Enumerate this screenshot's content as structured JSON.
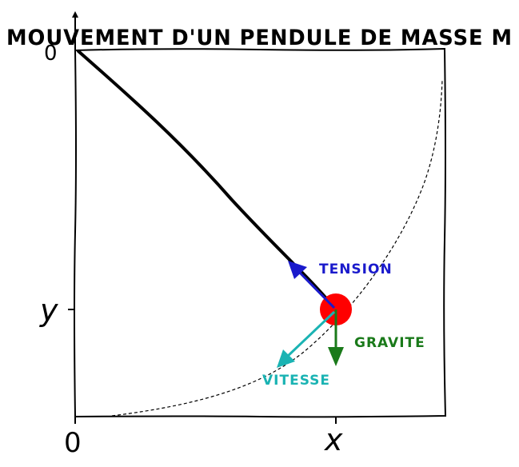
{
  "title": "MOUVEMENT D'UN PENDULE DE MASSE M",
  "axes": {
    "origin_label": "0",
    "x_label": "x",
    "y_label": "y",
    "y_top_label": "0"
  },
  "arrows": {
    "tension": {
      "label": "TENSION",
      "color": "#1a1acc"
    },
    "gravite": {
      "label": "GRAVITE",
      "color": "#1a7a1a"
    },
    "vitesse": {
      "label": "VITESSE",
      "color": "#1ab3b3"
    }
  },
  "mass_color": "#ff0000",
  "string_color": "#000000",
  "trajectory": {
    "style": "dashed",
    "color": "#000000"
  }
}
